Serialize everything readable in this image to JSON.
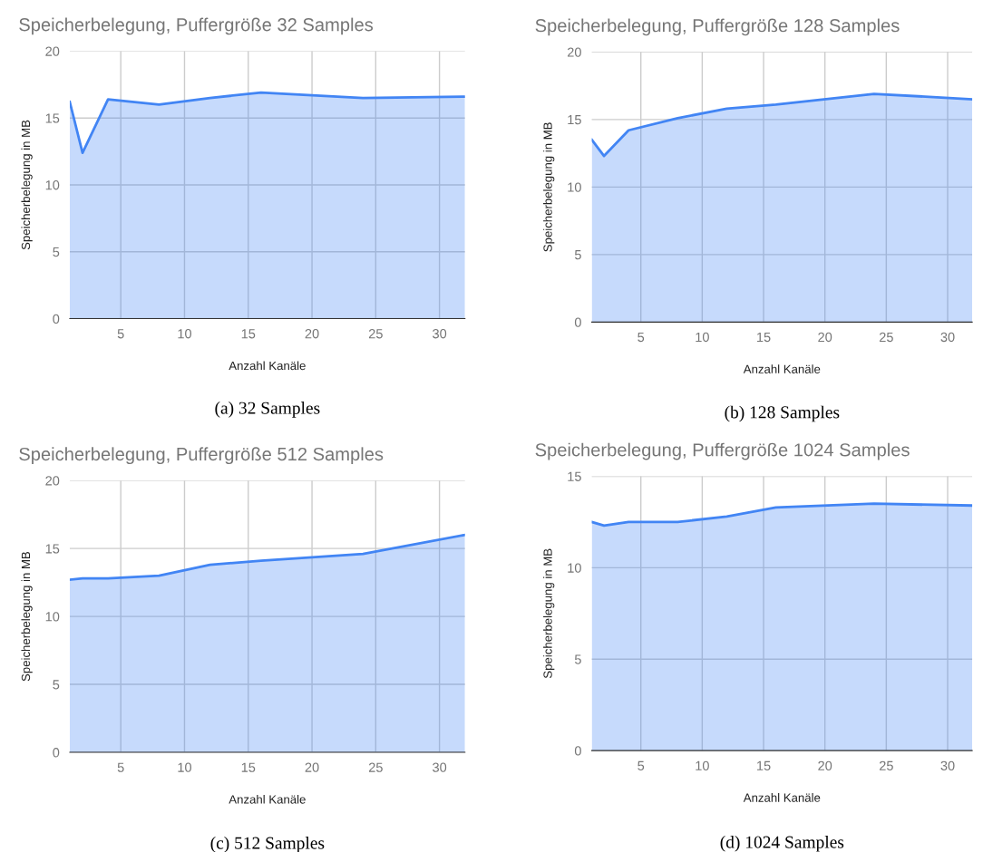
{
  "chart_data": [
    {
      "type": "area",
      "title": "Speicherbelegung, Puffergröße 32 Samples",
      "xlabel": "Anzahl Kanäle",
      "ylabel": "Speicherbelegung in MB",
      "x": [
        1,
        2,
        4,
        8,
        12,
        16,
        24,
        32
      ],
      "series": [
        {
          "color": "#4285f4",
          "values": [
            16.2,
            12.4,
            16.4,
            16.0,
            16.5,
            16.9,
            16.5,
            16.6
          ]
        }
      ],
      "xlim": [
        1,
        32
      ],
      "xticks": [
        5,
        10,
        15,
        20,
        25,
        30
      ],
      "ylim": [
        0,
        20
      ],
      "yticks": [
        0,
        5,
        10,
        15,
        20
      ],
      "grid": true,
      "annotations": [
        "(a) 32 Samples"
      ]
    },
    {
      "type": "area",
      "title": "Speicherbelegung, Puffergröße 128 Samples",
      "xlabel": "Anzahl Kanäle",
      "ylabel": "Speicherbelegung in MB",
      "x": [
        1,
        2,
        4,
        8,
        12,
        16,
        24,
        32
      ],
      "series": [
        {
          "color": "#4285f4",
          "values": [
            13.5,
            12.3,
            14.2,
            15.1,
            15.8,
            16.1,
            16.9,
            16.5
          ]
        }
      ],
      "xlim": [
        1,
        32
      ],
      "xticks": [
        5,
        10,
        15,
        20,
        25,
        30
      ],
      "ylim": [
        0,
        20
      ],
      "yticks": [
        0,
        5,
        10,
        15,
        20
      ],
      "grid": true,
      "annotations": [
        "(b) 128 Samples"
      ]
    },
    {
      "type": "area",
      "title": "Speicherbelegung, Puffergröße 512 Samples",
      "xlabel": "Anzahl Kanäle",
      "ylabel": "Speicherbelegung in MB",
      "x": [
        1,
        2,
        4,
        8,
        12,
        16,
        24,
        32
      ],
      "series": [
        {
          "color": "#4285f4",
          "values": [
            12.7,
            12.8,
            12.8,
            13.0,
            13.8,
            14.1,
            14.6,
            16.0
          ]
        }
      ],
      "xlim": [
        1,
        32
      ],
      "xticks": [
        5,
        10,
        15,
        20,
        25,
        30
      ],
      "ylim": [
        0,
        20
      ],
      "yticks": [
        0,
        5,
        10,
        15,
        20
      ],
      "grid": true,
      "annotations": [
        "(c) 512 Samples"
      ]
    },
    {
      "type": "area",
      "title": "Speicherbelegung, Puffergröße 1024 Samples",
      "xlabel": "Anzahl Kanäle",
      "ylabel": "Speicherbelegung in MB",
      "x": [
        1,
        2,
        4,
        8,
        12,
        16,
        24,
        32
      ],
      "series": [
        {
          "color": "#4285f4",
          "values": [
            12.5,
            12.3,
            12.5,
            12.5,
            12.8,
            13.3,
            13.5,
            13.4
          ]
        }
      ],
      "xlim": [
        1,
        32
      ],
      "xticks": [
        5,
        10,
        15,
        20,
        25,
        30
      ],
      "ylim": [
        0,
        15
      ],
      "yticks": [
        0,
        5,
        10,
        15
      ],
      "grid": true,
      "annotations": [
        "(d) 1024 Samples"
      ]
    }
  ]
}
